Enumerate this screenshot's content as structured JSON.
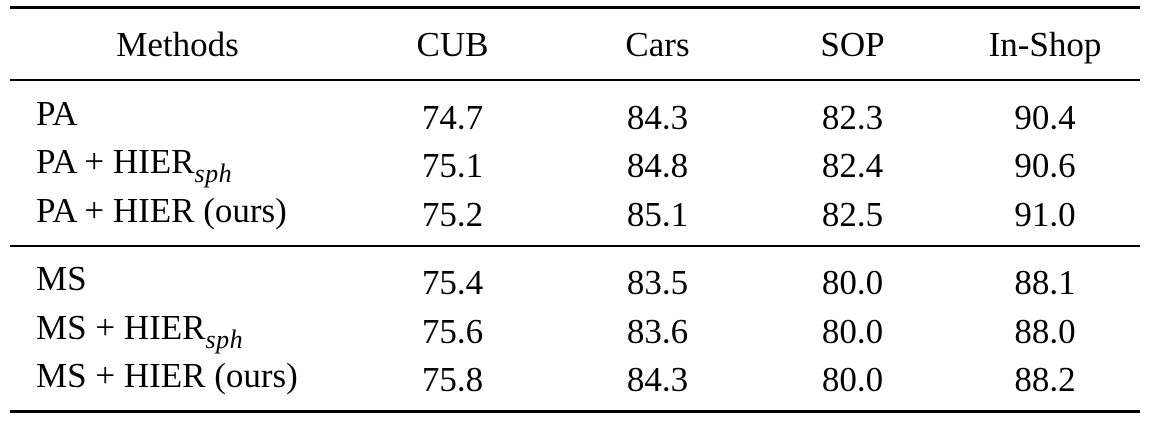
{
  "table": {
    "headers": [
      "Methods",
      "CUB",
      "Cars",
      "SOP",
      "In-Shop"
    ],
    "groups": [
      {
        "rows": [
          {
            "method": "PA",
            "method_sub": "",
            "values": [
              "74.7",
              "84.3",
              "82.3",
              "90.4"
            ]
          },
          {
            "method": "PA + HIER",
            "method_sub": "sph",
            "values": [
              "75.1",
              "84.8",
              "82.4",
              "90.6"
            ]
          },
          {
            "method": "PA + HIER (ours)",
            "method_sub": "",
            "values": [
              "75.2",
              "85.1",
              "82.5",
              "91.0"
            ]
          }
        ]
      },
      {
        "rows": [
          {
            "method": "MS",
            "method_sub": "",
            "values": [
              "75.4",
              "83.5",
              "80.0",
              "88.1"
            ]
          },
          {
            "method": "MS + HIER",
            "method_sub": "sph",
            "values": [
              "75.6",
              "83.6",
              "80.0",
              "88.0"
            ]
          },
          {
            "method": "MS + HIER (ours)",
            "method_sub": "",
            "values": [
              "75.8",
              "84.3",
              "80.0",
              "88.2"
            ]
          }
        ]
      }
    ]
  }
}
